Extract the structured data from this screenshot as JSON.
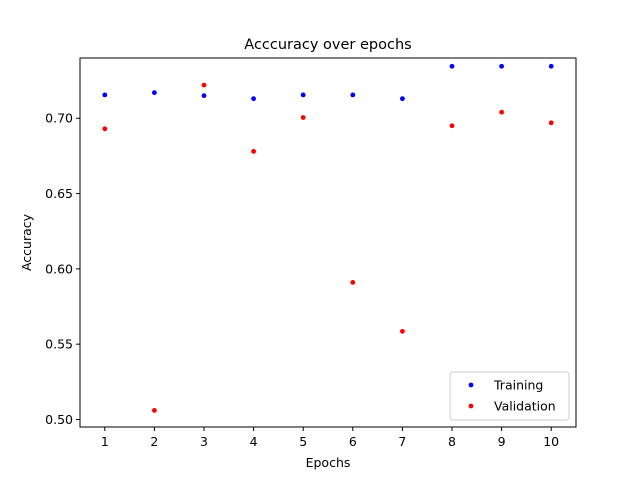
{
  "chart_data": {
    "type": "scatter",
    "title": "Acccuracy over epochs",
    "xlabel": "Epochs",
    "ylabel": "Accuracy",
    "xlim": [
      0.5,
      10.5
    ],
    "ylim": [
      0.495,
      0.74
    ],
    "xticks": [
      1,
      2,
      3,
      4,
      5,
      6,
      7,
      8,
      9,
      10
    ],
    "yticks": [
      0.5,
      0.55,
      0.6,
      0.65,
      0.7
    ],
    "ytick_labels": [
      "0.50",
      "0.55",
      "0.60",
      "0.65",
      "0.70"
    ],
    "grid": false,
    "legend_position": "lower-right",
    "series": [
      {
        "name": "Training",
        "color": "#0000ff",
        "x": [
          1,
          2,
          3,
          4,
          5,
          6,
          7,
          8,
          9,
          10
        ],
        "y": [
          0.7155,
          0.717,
          0.715,
          0.713,
          0.7155,
          0.7155,
          0.713,
          0.7345,
          0.7345,
          0.7345
        ]
      },
      {
        "name": "Validation",
        "color": "#ff0000",
        "x": [
          1,
          2,
          3,
          4,
          5,
          6,
          7,
          8,
          9,
          10
        ],
        "y": [
          0.693,
          0.506,
          0.722,
          0.678,
          0.7005,
          0.591,
          0.5585,
          0.695,
          0.704,
          0.697
        ]
      }
    ]
  }
}
